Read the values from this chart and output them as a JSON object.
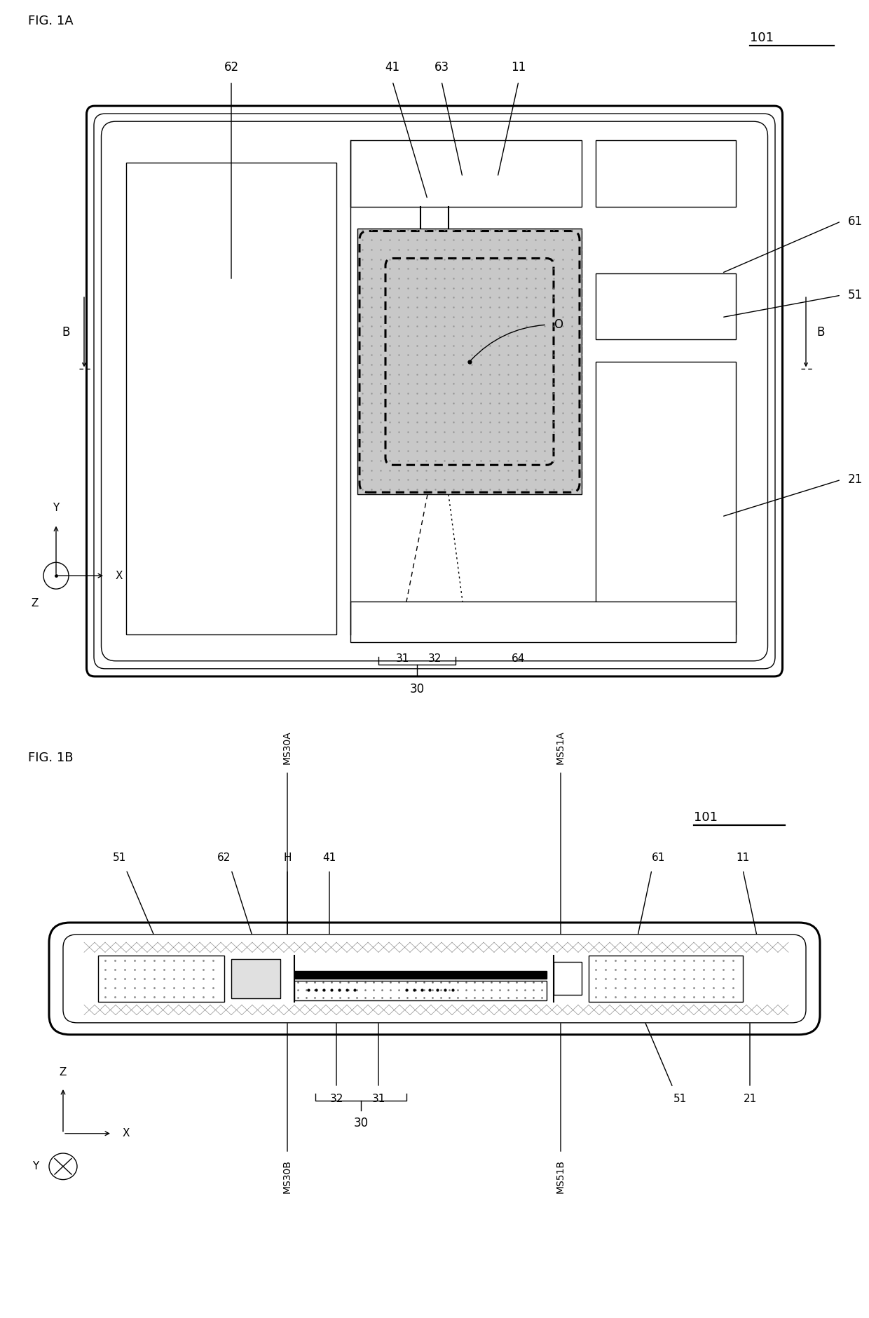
{
  "fig_title_1A": "FIG. 1A",
  "fig_title_1B": "FIG. 1B",
  "label_101": "101",
  "label_11": "11",
  "label_21": "21",
  "label_31": "31",
  "label_32": "32",
  "label_30": "30",
  "label_41": "41",
  "label_51": "51",
  "label_61": "61",
  "label_62": "62",
  "label_63": "63",
  "label_64": "64",
  "label_O": "O",
  "label_B": "B",
  "label_MS30A": "MS30A",
  "label_MS30B": "MS30B",
  "label_MS51A": "MS51A",
  "label_MS51B": "MS51B",
  "label_H": "H",
  "bg_color": "#ffffff",
  "line_color": "#000000",
  "gray_fill": "#cccccc",
  "dot_fill": "#dddddd",
  "hatch_fill": "#c0c0c0"
}
